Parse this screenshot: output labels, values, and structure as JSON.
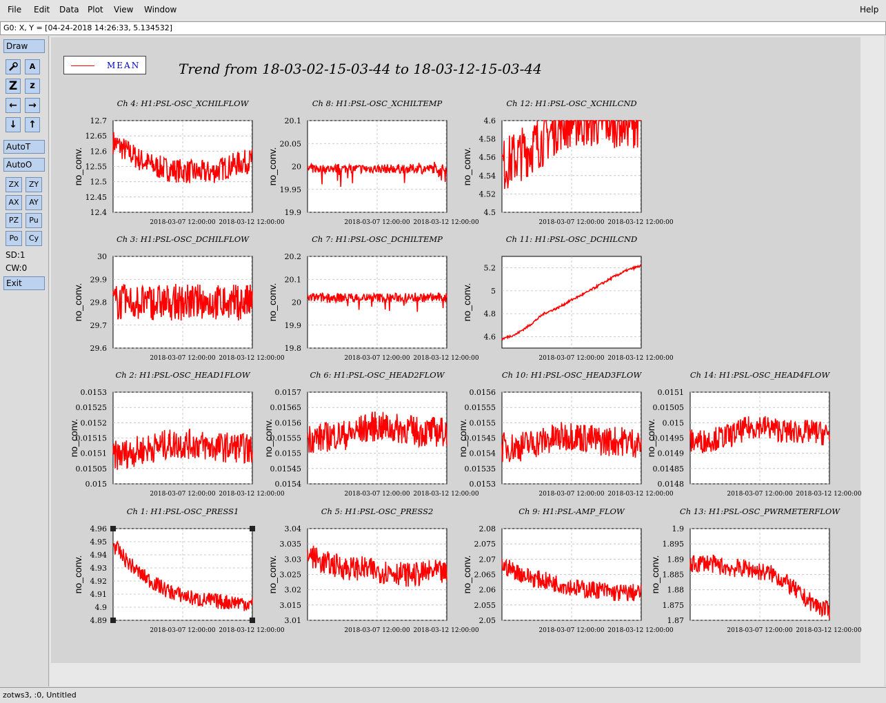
{
  "menu": {
    "file": "File",
    "edit": "Edit",
    "data": "Data",
    "plot": "Plot",
    "view": "View",
    "window": "Window",
    "help": "Help"
  },
  "coord_readout": "G0: X, Y = [04-24-2018 14:26:33, 5.134532]",
  "left_panel": {
    "draw": "Draw",
    "icons": [
      "wrench-icon",
      "text-icon",
      "zoom-large-icon",
      "zoom-small-icon",
      "arrow-left-icon",
      "arrow-right-icon",
      "arrow-down-icon",
      "arrow-up-icon"
    ],
    "icon_labels": [
      "",
      "A",
      "Z",
      "z",
      "←",
      "→",
      "↓",
      "↑"
    ],
    "auto_t": "AutoT",
    "auto_o": "AutoO",
    "grid": [
      "ZX",
      "ZY",
      "AX",
      "AY",
      "PZ",
      "Pu",
      "Po",
      "Cy"
    ],
    "sd": "SD:1",
    "cw": "CW:0",
    "exit": "Exit"
  },
  "status": "zotws3, :0, Untitled",
  "chart_data": {
    "type": "line",
    "title": "Trend from 18-03-02-15-03-44 to 18-03-12-15-03-44",
    "legend": {
      "label": "MEAN",
      "color": "#ff0000",
      "placement": "top-left"
    },
    "x_tick_labels": [
      "2018-03-07 12:00:00",
      "2018-03-12 12:00:00"
    ],
    "x_range": [
      "2018-03-02 15:03:44",
      "2018-03-12 15:03:44"
    ],
    "grid": true,
    "panels": [
      {
        "title": "Ch 4: H1:PSL-OSC_XCHILFLOW",
        "ylabel": "no_conv.",
        "ylim": [
          12.4,
          12.7
        ],
        "yticks": [
          "12.7",
          "12.65",
          "12.6",
          "12.55",
          "12.5",
          "12.45",
          "12.4"
        ],
        "trend": [
          12.63,
          12.6,
          12.57,
          12.55,
          12.54,
          12.535,
          12.53,
          12.53,
          12.545,
          12.56,
          12.57
        ],
        "noise": 0.04,
        "spikes": 0
      },
      {
        "title": "Ch 8: H1:PSL-OSC_XCHILTEMP",
        "ylabel": "no_conv.",
        "ylim": [
          19.9,
          20.1
        ],
        "yticks": [
          "20.1",
          "20.05",
          "20",
          "19.95",
          "19.9"
        ],
        "trend": [
          19.995,
          19.995,
          19.995,
          19.995,
          19.995,
          19.995,
          19.995,
          19.995,
          19.995,
          19.995,
          19.995
        ],
        "noise": 0.01,
        "spikes": 0.06
      },
      {
        "title": "Ch 12: H1:PSL-OSC_XCHILCND",
        "ylabel": "no_conv.",
        "ylim": [
          4.5,
          4.6
        ],
        "yticks": [
          "4.6",
          "4.58",
          "4.56",
          "4.54",
          "4.52",
          "4.5"
        ],
        "trend": [
          4.55,
          4.56,
          4.57,
          4.58,
          4.595,
          4.6,
          4.6,
          4.6,
          4.6,
          4.6,
          4.6
        ],
        "noise": 0.03,
        "spikes": 0
      },
      {
        "title": "Ch 3: H1:PSL-OSC_DCHILFLOW",
        "ylabel": "no_conv.",
        "ylim": [
          29.6,
          30
        ],
        "yticks": [
          "30",
          "29.9",
          "29.8",
          "29.7",
          "29.6"
        ],
        "trend": [
          29.8,
          29.8,
          29.8,
          29.8,
          29.8,
          29.8,
          29.8,
          29.8,
          29.8,
          29.8,
          29.8
        ],
        "noise": 0.08,
        "spikes": 0.1
      },
      {
        "title": "Ch 7: H1:PSL-OSC_DCHILTEMP",
        "ylabel": "no_conv.",
        "ylim": [
          19.8,
          20.2
        ],
        "yticks": [
          "20.2",
          "20.1",
          "20",
          "19.9",
          "19.8"
        ],
        "trend": [
          20.02,
          20.02,
          20.02,
          20.02,
          20.02,
          20.02,
          20.02,
          20.02,
          20.02,
          20.02,
          20.02
        ],
        "noise": 0.02,
        "spikes": 0.1
      },
      {
        "title": "Ch 11: H1:PSL-OSC_DCHILCND",
        "ylabel": "no_conv.",
        "ylim": [
          4.5,
          5.3
        ],
        "yticks": [
          "5.2",
          "5",
          "4.8",
          "4.6"
        ],
        "trend": [
          4.58,
          4.62,
          4.7,
          4.8,
          4.85,
          4.92,
          4.98,
          5.05,
          5.12,
          5.18,
          5.22
        ],
        "noise": 0.01,
        "spikes": 0
      },
      {
        "title": "Ch 2: H1:PSL-OSC_HEAD1FLOW",
        "ylabel": "no_conv.",
        "ylim": [
          0.015,
          0.0153
        ],
        "yticks": [
          "0.0153",
          "0.01525",
          "0.0152",
          "0.01515",
          "0.0151",
          "0.01505",
          "0.015"
        ],
        "trend": [
          0.01509,
          0.0151,
          0.01511,
          0.01512,
          0.01513,
          0.01513,
          0.01513,
          0.01512,
          0.01512,
          0.01512,
          0.01511
        ],
        "noise": 5e-05,
        "spikes": 0
      },
      {
        "title": "Ch 6: H1:PSL-OSC_HEAD2FLOW",
        "ylabel": "no_conv.",
        "ylim": [
          0.0154,
          0.0157
        ],
        "yticks": [
          "0.0157",
          "0.01565",
          "0.0156",
          "0.01555",
          "0.0155",
          "0.01545",
          "0.0154"
        ],
        "trend": [
          0.01555,
          0.01555,
          0.01556,
          0.01556,
          0.01558,
          0.01559,
          0.01558,
          0.01558,
          0.01557,
          0.01557,
          0.01557
        ],
        "noise": 5e-05,
        "spikes": 0
      },
      {
        "title": "Ch 10: H1:PSL-OSC_HEAD3FLOW",
        "ylabel": "no_conv.",
        "ylim": [
          0.0153,
          0.0156
        ],
        "yticks": [
          "0.0156",
          "0.01555",
          "0.0155",
          "0.01545",
          "0.0154",
          "0.01535",
          "0.0153"
        ],
        "trend": [
          0.01542,
          0.01542,
          0.01543,
          0.01544,
          0.01545,
          0.01546,
          0.01545,
          0.01544,
          0.01544,
          0.01544,
          0.01543
        ],
        "noise": 5e-05,
        "spikes": 0
      },
      {
        "title": "Ch 14: H1:PSL-OSC_HEAD4FLOW",
        "ylabel": "no_conv.",
        "ylim": [
          0.0148,
          0.0151
        ],
        "yticks": [
          "0.0151",
          "0.01505",
          "0.015",
          "0.01495",
          "0.0149",
          "0.01485",
          "0.0148"
        ],
        "trend": [
          0.01494,
          0.01494,
          0.01495,
          0.01496,
          0.01498,
          0.01499,
          0.01498,
          0.01497,
          0.01497,
          0.01497,
          0.01496
        ],
        "noise": 4e-05,
        "spikes": 0
      },
      {
        "title": "Ch 1: H1:PSL-OSC_PRESS1",
        "ylabel": "no_conv.",
        "ylim": [
          4.89,
          4.96
        ],
        "yticks": [
          "4.96",
          "4.95",
          "4.94",
          "4.93",
          "4.92",
          "4.91",
          "4.9",
          "4.89"
        ],
        "trend": [
          4.948,
          4.935,
          4.925,
          4.918,
          4.912,
          4.909,
          4.906,
          4.905,
          4.904,
          4.904,
          4.902
        ],
        "noise": 0.006,
        "spikes": 0
      },
      {
        "title": "Ch 5: H1:PSL-OSC_PRESS2",
        "ylabel": "no_conv.",
        "ylim": [
          3.01,
          3.04
        ],
        "yticks": [
          "3.04",
          "3.035",
          "3.03",
          "3.025",
          "3.02",
          "3.015",
          "3.01"
        ],
        "trend": [
          3.032,
          3.029,
          3.028,
          3.027,
          3.027,
          3.026,
          3.026,
          3.025,
          3.025,
          3.026,
          3.025
        ],
        "noise": 0.004,
        "spikes": 0
      },
      {
        "title": "Ch 9: H1:PSL-AMP_FLOW",
        "ylabel": "no_conv.",
        "ylim": [
          2.05,
          2.08
        ],
        "yticks": [
          "2.08",
          "2.075",
          "2.07",
          "2.065",
          "2.06",
          "2.055",
          "2.05"
        ],
        "trend": [
          2.068,
          2.066,
          2.064,
          2.063,
          2.062,
          2.061,
          2.06,
          2.06,
          2.059,
          2.059,
          2.059
        ],
        "noise": 0.003,
        "spikes": 0
      },
      {
        "title": "Ch 13: H1:PSL-OSC_PWRMETERFLOW",
        "ylabel": "no_conv.",
        "ylim": [
          1.87,
          1.9
        ],
        "yticks": [
          "1.9",
          "1.895",
          "1.89",
          "1.885",
          "1.88",
          "1.875",
          "1.87"
        ],
        "trend": [
          1.888,
          1.889,
          1.888,
          1.887,
          1.887,
          1.886,
          1.885,
          1.882,
          1.878,
          1.875,
          1.873
        ],
        "noise": 0.003,
        "spikes": 0
      }
    ]
  }
}
